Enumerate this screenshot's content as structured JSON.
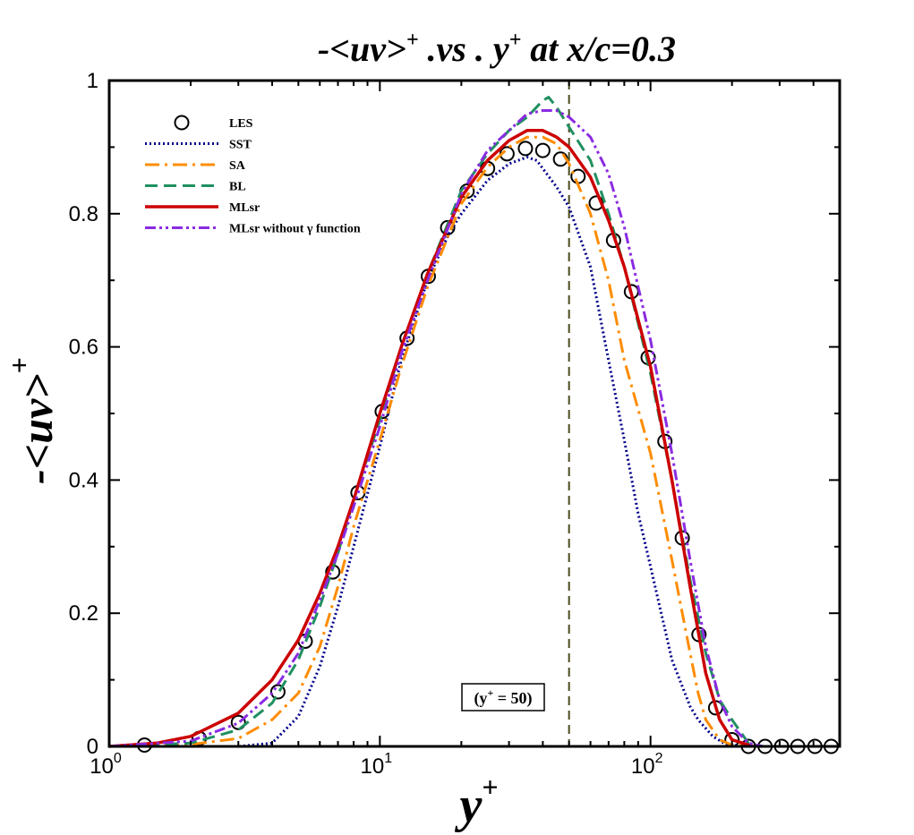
{
  "chart_data": {
    "type": "line",
    "title": "-<uv>+ .vs . y+ at x/c=0.3",
    "title_parts": {
      "lhs": "-<uv>",
      "lhs_sup": "+",
      "mid": " .vs . y",
      "mid_sup": "+",
      "rhs": " at x/c=0.3"
    },
    "xlabel": "y",
    "xlabel_sup": "+",
    "ylabel": "-<uv>",
    "ylabel_sup": "+",
    "x_scale": "log",
    "xlim": [
      1,
      500
    ],
    "ylim": [
      0,
      1
    ],
    "x_ticks": [
      {
        "value": 1,
        "base": "10",
        "exp": "0"
      },
      {
        "value": 10,
        "base": "10",
        "exp": "1"
      },
      {
        "value": 100,
        "base": "10",
        "exp": "2"
      }
    ],
    "y_ticks": [
      {
        "value": 0,
        "label": "0"
      },
      {
        "value": 0.2,
        "label": "0.2"
      },
      {
        "value": 0.4,
        "label": "0.4"
      },
      {
        "value": 0.6,
        "label": "0.6"
      },
      {
        "value": 0.8,
        "label": "0.8"
      },
      {
        "value": 1,
        "label": "1"
      }
    ],
    "reference_line": {
      "x": 50,
      "label_base": "(y",
      "label_sup": "+",
      "label_rest": " = 50)"
    },
    "legend_position": "top-left",
    "series": [
      {
        "name": "LES",
        "style": "markers",
        "color": "#000000",
        "x": [
          1.35,
          2.15,
          3.0,
          4.2,
          5.3,
          6.7,
          8.3,
          10.2,
          12.6,
          15.1,
          17.8,
          21.0,
          25.0,
          29.5,
          34.5,
          40.0,
          46.5,
          54.0,
          63.0,
          73.0,
          85.0,
          98.0,
          113.0,
          131.0,
          151.0,
          174.0,
          200.0,
          230.0,
          265.0,
          305.0,
          350.0,
          405.0,
          465.0
        ],
        "y": [
          0.002,
          0.012,
          0.036,
          0.082,
          0.158,
          0.262,
          0.381,
          0.503,
          0.613,
          0.706,
          0.779,
          0.834,
          0.868,
          0.89,
          0.898,
          0.895,
          0.882,
          0.856,
          0.816,
          0.76,
          0.683,
          0.584,
          0.458,
          0.313,
          0.168,
          0.058,
          0.01,
          0.0,
          0.0,
          0.0,
          0.0,
          0.0,
          0.0
        ]
      },
      {
        "name": "SST",
        "style": "dotted",
        "color": "#00008B",
        "x": [
          1,
          2,
          3,
          4,
          5,
          6,
          7,
          8,
          10,
          12,
          15,
          18,
          20,
          25,
          30,
          35,
          38,
          45,
          50,
          60,
          70,
          80,
          90,
          100,
          120,
          140,
          150,
          170,
          190,
          220
        ],
        "y": [
          0.0,
          0.0,
          0.0,
          0.005,
          0.045,
          0.12,
          0.21,
          0.3,
          0.45,
          0.58,
          0.7,
          0.77,
          0.8,
          0.85,
          0.875,
          0.885,
          0.88,
          0.84,
          0.81,
          0.72,
          0.58,
          0.46,
          0.35,
          0.27,
          0.13,
          0.06,
          0.04,
          0.015,
          0.003,
          0.0
        ]
      },
      {
        "name": "SA",
        "style": "dash-dot",
        "color": "#FF8C00",
        "x": [
          1,
          2,
          3,
          4,
          5,
          6,
          7,
          8,
          10,
          12,
          15,
          20,
          25,
          30,
          35,
          40,
          45,
          50,
          60,
          70,
          80,
          100,
          120,
          140,
          150,
          160,
          180,
          200,
          240
        ],
        "y": [
          0.0,
          0.003,
          0.012,
          0.04,
          0.08,
          0.15,
          0.24,
          0.33,
          0.46,
          0.57,
          0.69,
          0.815,
          0.87,
          0.9,
          0.915,
          0.915,
          0.905,
          0.875,
          0.8,
          0.7,
          0.58,
          0.44,
          0.28,
          0.14,
          0.08,
          0.04,
          0.01,
          0.002,
          0.0
        ]
      },
      {
        "name": "BL",
        "style": "long-dash",
        "color": "#209060",
        "x": [
          1,
          2,
          3,
          4,
          5,
          6,
          7,
          8,
          10,
          12,
          15,
          20,
          25,
          30,
          35,
          40,
          42,
          45,
          50,
          60,
          70,
          80,
          100,
          120,
          140,
          160,
          180,
          200,
          230,
          260
        ],
        "y": [
          0.0,
          0.005,
          0.025,
          0.065,
          0.13,
          0.21,
          0.29,
          0.37,
          0.49,
          0.6,
          0.71,
          0.835,
          0.89,
          0.925,
          0.945,
          0.97,
          0.975,
          0.96,
          0.93,
          0.88,
          0.8,
          0.72,
          0.56,
          0.4,
          0.25,
          0.14,
          0.07,
          0.04,
          0.005,
          0.0
        ]
      },
      {
        "name": "MLsr",
        "style": "solid",
        "color": "#CC0000",
        "x": [
          1,
          1.5,
          2,
          3,
          4,
          5,
          6,
          7,
          8,
          10,
          12,
          15,
          20,
          25,
          30,
          35,
          40,
          45,
          50,
          60,
          70,
          80,
          100,
          120,
          140,
          160,
          180,
          200,
          240
        ],
        "y": [
          0.0,
          0.005,
          0.015,
          0.05,
          0.1,
          0.16,
          0.23,
          0.3,
          0.37,
          0.5,
          0.6,
          0.71,
          0.825,
          0.88,
          0.91,
          0.925,
          0.925,
          0.915,
          0.9,
          0.855,
          0.79,
          0.72,
          0.57,
          0.4,
          0.24,
          0.11,
          0.04,
          0.01,
          0.0
        ]
      },
      {
        "name": "MLsr without γ function",
        "style": "dash-dot-dot",
        "color": "#8A2BE2",
        "x": [
          1,
          2,
          3,
          4,
          5,
          6,
          7,
          8,
          10,
          12,
          15,
          20,
          25,
          30,
          35,
          40,
          45,
          50,
          60,
          70,
          80,
          100,
          120,
          140,
          160,
          180,
          200,
          230,
          260
        ],
        "y": [
          0.0,
          0.008,
          0.035,
          0.08,
          0.14,
          0.22,
          0.29,
          0.36,
          0.48,
          0.59,
          0.7,
          0.83,
          0.895,
          0.925,
          0.95,
          0.955,
          0.955,
          0.945,
          0.915,
          0.86,
          0.78,
          0.61,
          0.44,
          0.28,
          0.15,
          0.07,
          0.03,
          0.005,
          0.0
        ]
      }
    ]
  }
}
